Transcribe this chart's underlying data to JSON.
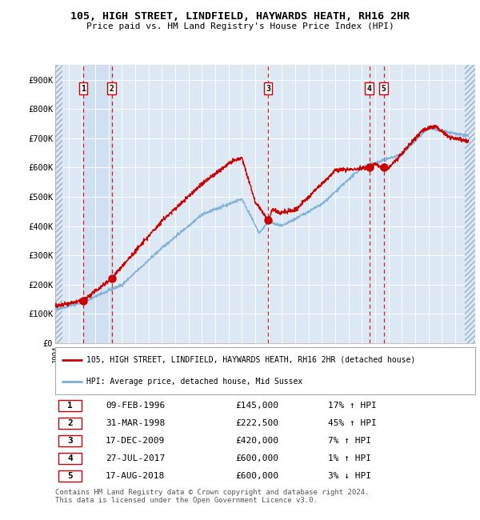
{
  "title": "105, HIGH STREET, LINDFIELD, HAYWARDS HEATH, RH16 2HR",
  "subtitle": "Price paid vs. HM Land Registry's House Price Index (HPI)",
  "ylim": [
    0,
    950000
  ],
  "yticks": [
    0,
    100000,
    200000,
    300000,
    400000,
    500000,
    600000,
    700000,
    800000,
    900000
  ],
  "ytick_labels": [
    "£0",
    "£100K",
    "£200K",
    "£300K",
    "£400K",
    "£500K",
    "£600K",
    "£700K",
    "£800K",
    "£900K"
  ],
  "xlim_start": 1994.0,
  "xlim_end": 2025.5,
  "sale_dates": [
    1996.1,
    1998.25,
    2009.96,
    2017.57,
    2018.63
  ],
  "sale_prices": [
    145000,
    222500,
    420000,
    600000,
    600000
  ],
  "sale_labels": [
    "1",
    "2",
    "3",
    "4",
    "5"
  ],
  "sale_table": [
    {
      "label": "1",
      "date": "09-FEB-1996",
      "price": "£145,000",
      "hpi": "17% ↑ HPI"
    },
    {
      "label": "2",
      "date": "31-MAR-1998",
      "price": "£222,500",
      "hpi": "45% ↑ HPI"
    },
    {
      "label": "3",
      "date": "17-DEC-2009",
      "price": "£420,000",
      "hpi": "7% ↑ HPI"
    },
    {
      "label": "4",
      "date": "27-JUL-2017",
      "price": "£600,000",
      "hpi": "1% ↑ HPI"
    },
    {
      "label": "5",
      "date": "17-AUG-2018",
      "price": "£600,000",
      "hpi": "3% ↓ HPI"
    }
  ],
  "property_color": "#cc0000",
  "hpi_color": "#7aadd4",
  "plot_bg": "#dce9f5",
  "legend_text_property": "105, HIGH STREET, LINDFIELD, HAYWARDS HEATH, RH16 2HR (detached house)",
  "legend_text_hpi": "HPI: Average price, detached house, Mid Sussex",
  "footer": "Contains HM Land Registry data © Crown copyright and database right 2024.\nThis data is licensed under the Open Government Licence v3.0."
}
